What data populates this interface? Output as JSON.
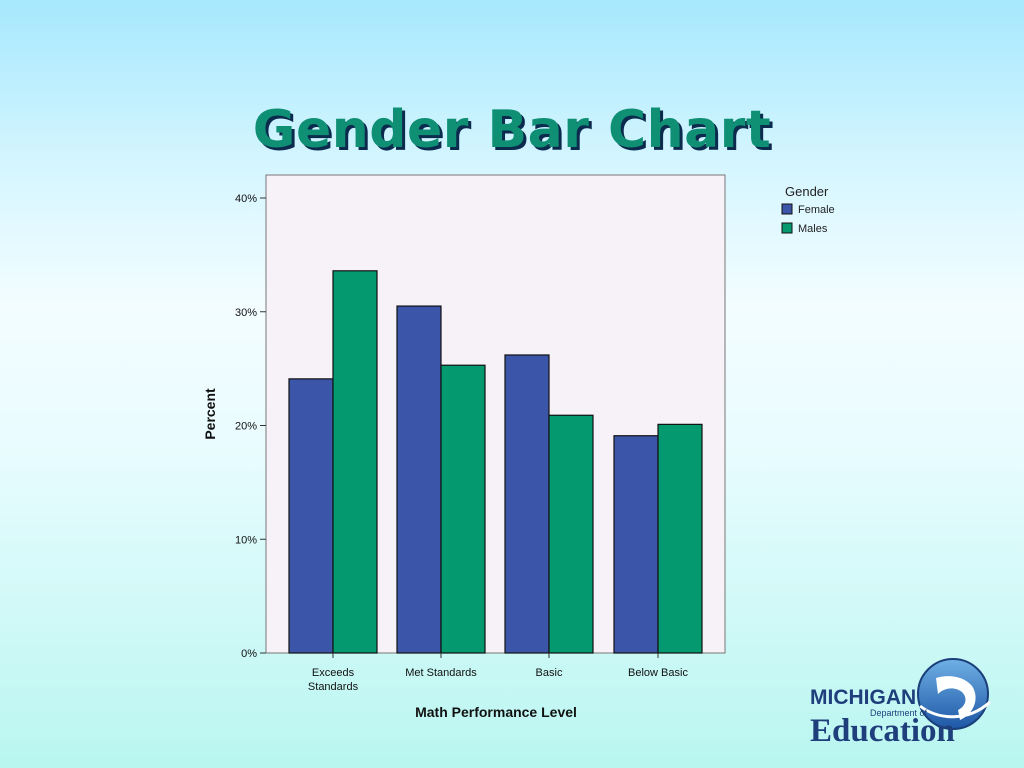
{
  "slide": {
    "title": "Gender Bar Chart"
  },
  "logo": {
    "line1": "MICHIGAN",
    "line2": "Department of",
    "line3": "Education"
  },
  "colors": {
    "female": "#3b55a8",
    "males": "#05996f",
    "plot_bg": "#f7f2f7"
  },
  "chart_data": {
    "type": "bar",
    "categories": [
      [
        "Exceeds",
        "Standards"
      ],
      [
        "Met Standards"
      ],
      [
        "Basic"
      ],
      [
        "Below Basic"
      ]
    ],
    "series": [
      {
        "name": "Female",
        "values": [
          24.1,
          30.5,
          26.2,
          19.1
        ]
      },
      {
        "name": "Males",
        "values": [
          33.6,
          25.3,
          20.9,
          20.1
        ]
      }
    ],
    "xlabel": "Math Performance Level",
    "ylabel": "Percent",
    "ylim": [
      0,
      40
    ],
    "yticks": [
      "0%",
      "10%",
      "20%",
      "30%",
      "40%"
    ],
    "legend": {
      "title": "Gender",
      "position": "top-right"
    },
    "grid": false
  }
}
